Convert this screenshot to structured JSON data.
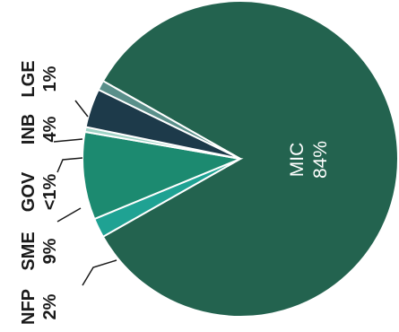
{
  "chart_data": {
    "type": "pie",
    "title": "",
    "legend": "none",
    "slices": [
      {
        "label": "MIC",
        "value_text": "84%",
        "value": 84,
        "color": "#23634f"
      },
      {
        "label": "NFP",
        "value_text": "2%",
        "value": 2,
        "color": "#1fa293"
      },
      {
        "label": "SME",
        "value_text": "9%",
        "value": 9,
        "color": "#1c8a70"
      },
      {
        "label": "GOV",
        "value_text": "<1%",
        "value": 0.5,
        "color": "#9fd3c5"
      },
      {
        "label": "INB",
        "value_text": "4%",
        "value": 4,
        "color": "#1d3a4a"
      },
      {
        "label": "LGE",
        "value_text": "1%",
        "value": 1,
        "color": "#5a8f8a"
      }
    ]
  }
}
